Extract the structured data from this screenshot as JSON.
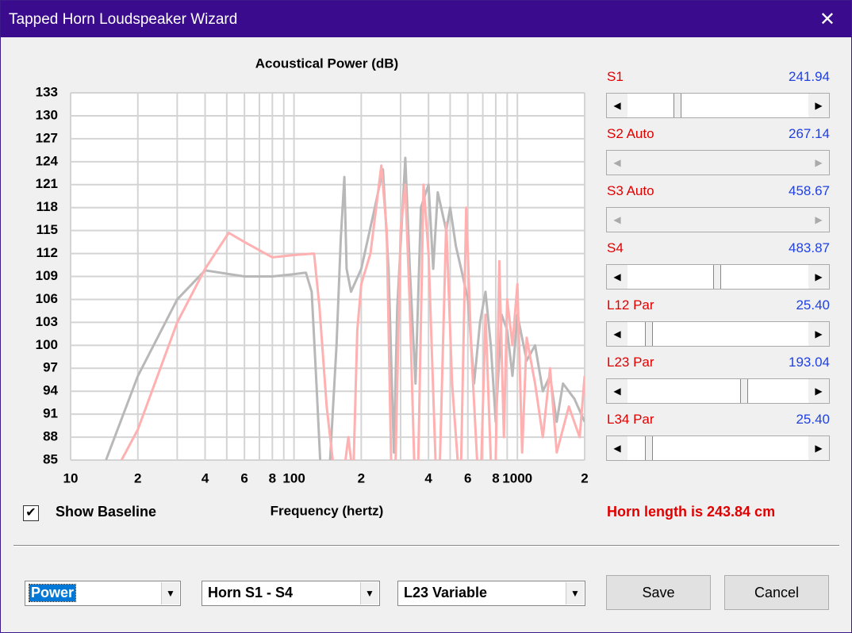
{
  "window": {
    "title": "Tapped Horn Loudspeaker Wizard"
  },
  "chart_data": {
    "type": "line",
    "title": "Acoustical Power (dB)",
    "x_label": "Frequency (hertz)",
    "xscale": "log",
    "xlim": [
      10,
      2000
    ],
    "ylim": [
      85,
      133
    ],
    "grid": true,
    "xticks": [
      {
        "value": 10,
        "label": "10"
      },
      {
        "value": 20,
        "label": "2"
      },
      {
        "value": 40,
        "label": "4"
      },
      {
        "value": 60,
        "label": "6"
      },
      {
        "value": 80,
        "label": "8"
      },
      {
        "value": 100,
        "label": "100"
      },
      {
        "value": 200,
        "label": "2"
      },
      {
        "value": 400,
        "label": "4"
      },
      {
        "value": 600,
        "label": "6"
      },
      {
        "value": 800,
        "label": "8"
      },
      {
        "value": 1000,
        "label": "1000"
      },
      {
        "value": 2000,
        "label": "2"
      }
    ],
    "xgrid": [
      10,
      20,
      30,
      40,
      50,
      60,
      70,
      80,
      90,
      100,
      200,
      300,
      400,
      500,
      600,
      700,
      800,
      900,
      1000,
      2000
    ],
    "yticks": [
      85,
      88,
      91,
      94,
      97,
      100,
      103,
      106,
      109,
      112,
      115,
      118,
      121,
      124,
      127,
      130,
      133
    ],
    "series": [
      {
        "color": "#b8b8b8",
        "x": [
          14.4,
          20,
          30,
          40,
          60,
          80,
          100,
          113,
          120,
          126,
          131,
          null,
          145,
          155,
          162,
          168,
          172,
          180,
          200,
          230,
          250,
          265,
          280,
          290,
          315,
          330,
          350,
          370,
          400,
          420,
          440,
          480,
          500,
          530,
          560,
          600,
          640,
          680,
          720,
          760,
          800,
          850,
          900,
          950,
          1000,
          1100,
          1200,
          1300,
          1400,
          1500,
          1600,
          1800,
          2000
        ],
        "values": [
          85,
          96,
          106,
          109.8,
          109,
          109,
          109.3,
          109.5,
          107,
          95,
          85,
          null,
          85,
          100,
          114,
          122,
          110,
          107,
          110,
          118,
          123,
          110,
          86,
          105,
          124.5,
          110,
          95,
          118,
          121,
          110,
          120,
          115,
          118,
          113,
          110,
          106,
          95,
          103,
          107,
          100,
          90,
          104,
          102,
          96,
          104,
          98,
          100,
          94,
          96,
          90,
          95,
          93,
          90
        ]
      },
      {
        "color": "#ffb0b0",
        "x": [
          16.9,
          20,
          30,
          40,
          51,
          60,
          80,
          100,
          123,
          130,
          140,
          149,
          null,
          170,
          175,
          180,
          null,
          185,
          192,
          200,
          220,
          246,
          260,
          272,
          null,
          285,
          300,
          315,
          330,
          345,
          null,
          360,
          380,
          400,
          430,
          null,
          450,
          480,
          510,
          540,
          null,
          560,
          590,
          620,
          660,
          null,
          690,
          720,
          760,
          null,
          800,
          830,
          870,
          900,
          950,
          1000,
          1050,
          1100,
          1200,
          1300,
          1400,
          1500,
          1700,
          1900,
          2000
        ],
        "values": [
          85,
          89,
          103,
          110,
          114.7,
          113.5,
          111.5,
          111.8,
          112,
          105,
          92,
          85,
          null,
          85,
          88,
          85,
          null,
          85,
          102,
          108,
          112,
          123.5,
          115,
          85,
          null,
          85,
          115,
          121,
          105,
          85,
          null,
          85,
          121,
          112,
          85,
          null,
          85,
          116,
          95,
          85,
          null,
          85,
          118,
          100,
          85,
          null,
          85,
          104,
          85,
          null,
          85,
          111,
          88,
          106,
          100,
          108,
          86,
          101,
          95,
          88,
          97,
          86,
          92,
          88,
          96
        ]
      }
    ]
  },
  "sliders": [
    {
      "label": "S1",
      "value": "241.94",
      "enabled": true
    },
    {
      "label": "S2 Auto",
      "value": "267.14",
      "enabled": false
    },
    {
      "label": "S3 Auto",
      "value": "458.67",
      "enabled": false
    },
    {
      "label": "S4",
      "value": "483.87",
      "enabled": true
    },
    {
      "label": "L12 Par",
      "value": "25.40",
      "enabled": true
    },
    {
      "label": "L23 Par",
      "value": "193.04",
      "enabled": true
    },
    {
      "label": "L34 Par",
      "value": "25.40",
      "enabled": true
    }
  ],
  "show_baseline": {
    "label": "Show Baseline",
    "checked": true
  },
  "status": "Horn length is 243.84 cm",
  "dropdowns": [
    "Power",
    "Horn S1 - S4",
    "L23 Variable"
  ],
  "buttons": [
    "Save",
    "Cancel"
  ]
}
